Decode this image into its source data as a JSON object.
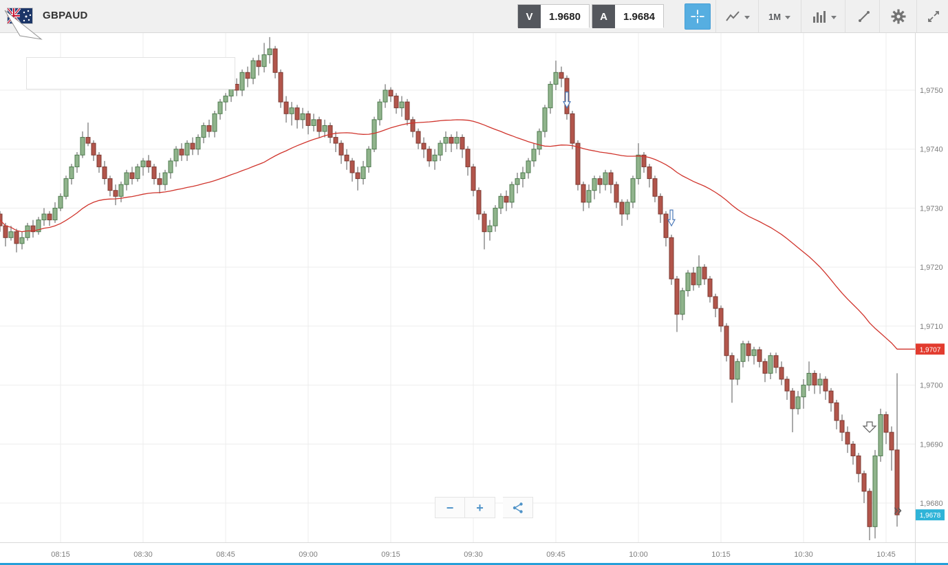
{
  "toolbar": {
    "symbol": "GBPAUD",
    "sell": {
      "label": "V",
      "price": "1.9680"
    },
    "buy": {
      "label": "A",
      "price": "1.9684"
    },
    "timeframe": "1M"
  },
  "controls": {
    "zoom_out": "−",
    "zoom_in": "+",
    "scroll_to_end": "»"
  },
  "chart_data": {
    "type": "candlestick",
    "symbol": "GBPAUD",
    "interval": "1m",
    "start_time": "08:03",
    "x_tick_labels": [
      "08:15",
      "08:30",
      "08:45",
      "09:00",
      "09:15",
      "09:30",
      "09:45",
      "10:00",
      "10:15",
      "10:30",
      "10:45"
    ],
    "y_tick_labels": [
      "1,9750",
      "1,9740",
      "1,9730",
      "1,9720",
      "1,9710",
      "1,9700",
      "1,9690",
      "1,9680"
    ],
    "y_range": [
      1.9673,
      1.976
    ],
    "grid": true,
    "ma": {
      "name": "SMA",
      "period": 50,
      "color": "#d0342c",
      "axis_label": "1,9707",
      "axis_label_color": "#e23b2e"
    },
    "current_price": {
      "value": 1.9678,
      "label": "1,9678",
      "color": "#2fb4d8"
    },
    "markers": [
      {
        "time": "09:47",
        "price": 1.9747,
        "type": "sell-arrow",
        "variant": "blue"
      },
      {
        "time": "10:06",
        "price": 1.9727,
        "type": "sell-arrow",
        "variant": "blue"
      },
      {
        "time": "10:42",
        "price": 1.9692,
        "type": "sell-arrow",
        "variant": "wide"
      }
    ],
    "colors": {
      "up_fill": "#90b48c",
      "up_stroke": "#4e7a4e",
      "down_fill": "#b2554b",
      "down_stroke": "#7c3b33",
      "wick": "#565656",
      "grid": "#ededed",
      "axis_text": "#7d7d7d",
      "axis_line": "#d9d9d9"
    },
    "candles": [
      [
        1.9731,
        1.97315,
        1.97285,
        1.9729
      ],
      [
        1.9729,
        1.97295,
        1.9726,
        1.9727
      ],
      [
        1.9727,
        1.97275,
        1.97235,
        1.9725
      ],
      [
        1.9725,
        1.9727,
        1.97245,
        1.9726
      ],
      [
        1.9726,
        1.97265,
        1.97225,
        1.9724
      ],
      [
        1.9724,
        1.9726,
        1.9723,
        1.9725
      ],
      [
        1.9725,
        1.97275,
        1.97245,
        1.9727
      ],
      [
        1.9727,
        1.9728,
        1.9725,
        1.9726
      ],
      [
        1.9726,
        1.97285,
        1.97255,
        1.9728
      ],
      [
        1.9728,
        1.973,
        1.9727,
        1.9729
      ],
      [
        1.9729,
        1.97295,
        1.9727,
        1.9728
      ],
      [
        1.9728,
        1.9731,
        1.97275,
        1.973
      ],
      [
        1.973,
        1.97325,
        1.97295,
        1.9732
      ],
      [
        1.9732,
        1.97355,
        1.97315,
        1.9735
      ],
      [
        1.9735,
        1.97375,
        1.9734,
        1.9737
      ],
      [
        1.9737,
        1.97395,
        1.9736,
        1.9739
      ],
      [
        1.9739,
        1.9743,
        1.97385,
        1.9742
      ],
      [
        1.9742,
        1.97445,
        1.97405,
        1.9741
      ],
      [
        1.9741,
        1.97415,
        1.9738,
        1.9739
      ],
      [
        1.9739,
        1.97395,
        1.9736,
        1.9737
      ],
      [
        1.9737,
        1.9738,
        1.9734,
        1.9735
      ],
      [
        1.9735,
        1.97355,
        1.9732,
        1.9733
      ],
      [
        1.9733,
        1.9734,
        1.97305,
        1.9732
      ],
      [
        1.9732,
        1.97345,
        1.9731,
        1.9734
      ],
      [
        1.9734,
        1.97365,
        1.9733,
        1.9736
      ],
      [
        1.9736,
        1.9737,
        1.9734,
        1.9735
      ],
      [
        1.9735,
        1.97375,
        1.97345,
        1.9737
      ],
      [
        1.9737,
        1.97385,
        1.97355,
        1.9738
      ],
      [
        1.9738,
        1.9739,
        1.9736,
        1.9737
      ],
      [
        1.9737,
        1.97375,
        1.9734,
        1.9735
      ],
      [
        1.9735,
        1.9736,
        1.97325,
        1.9734
      ],
      [
        1.9734,
        1.97365,
        1.9733,
        1.9736
      ],
      [
        1.9736,
        1.97385,
        1.9735,
        1.9738
      ],
      [
        1.9738,
        1.97405,
        1.9737,
        1.974
      ],
      [
        1.974,
        1.9741,
        1.9738,
        1.9739
      ],
      [
        1.9739,
        1.97415,
        1.9738,
        1.9741
      ],
      [
        1.9741,
        1.9742,
        1.9739,
        1.974
      ],
      [
        1.974,
        1.97425,
        1.9739,
        1.9742
      ],
      [
        1.9742,
        1.97445,
        1.9741,
        1.9744
      ],
      [
        1.9744,
        1.9745,
        1.9742,
        1.9743
      ],
      [
        1.9743,
        1.97465,
        1.9742,
        1.9746
      ],
      [
        1.9746,
        1.97485,
        1.9745,
        1.9748
      ],
      [
        1.9748,
        1.97495,
        1.97465,
        1.9749
      ],
      [
        1.9749,
        1.97515,
        1.9748,
        1.9751
      ],
      [
        1.9751,
        1.9752,
        1.9749,
        1.975
      ],
      [
        1.975,
        1.97535,
        1.9749,
        1.9753
      ],
      [
        1.9753,
        1.9754,
        1.97505,
        1.9752
      ],
      [
        1.9752,
        1.97555,
        1.9751,
        1.9755
      ],
      [
        1.9755,
        1.9756,
        1.97525,
        1.9754
      ],
      [
        1.9754,
        1.9758,
        1.9753,
        1.9756
      ],
      [
        1.9756,
        1.9759,
        1.97545,
        1.9757
      ],
      [
        1.9757,
        1.97575,
        1.9752,
        1.9753
      ],
      [
        1.9753,
        1.97535,
        1.9747,
        1.9748
      ],
      [
        1.9748,
        1.9749,
        1.97445,
        1.9746
      ],
      [
        1.9746,
        1.9748,
        1.9744,
        1.9747
      ],
      [
        1.9747,
        1.97475,
        1.97435,
        1.9745
      ],
      [
        1.9745,
        1.9747,
        1.97435,
        1.9746
      ],
      [
        1.9746,
        1.97465,
        1.97425,
        1.9744
      ],
      [
        1.9744,
        1.9746,
        1.9743,
        1.9745
      ],
      [
        1.9745,
        1.97455,
        1.9742,
        1.9743
      ],
      [
        1.9743,
        1.9745,
        1.9742,
        1.9744
      ],
      [
        1.9744,
        1.97445,
        1.9741,
        1.9742
      ],
      [
        1.9742,
        1.9743,
        1.97395,
        1.9741
      ],
      [
        1.9741,
        1.97415,
        1.97375,
        1.9739
      ],
      [
        1.9739,
        1.974,
        1.97365,
        1.9738
      ],
      [
        1.9738,
        1.97385,
        1.97345,
        1.9736
      ],
      [
        1.9736,
        1.9737,
        1.9733,
        1.9735
      ],
      [
        1.9735,
        1.9738,
        1.9734,
        1.9737
      ],
      [
        1.9737,
        1.97405,
        1.9736,
        1.974
      ],
      [
        1.974,
        1.97455,
        1.97395,
        1.9745
      ],
      [
        1.9745,
        1.97485,
        1.9744,
        1.9748
      ],
      [
        1.9748,
        1.9751,
        1.9747,
        1.975
      ],
      [
        1.975,
        1.97505,
        1.9748,
        1.9749
      ],
      [
        1.9749,
        1.97495,
        1.9746,
        1.9747
      ],
      [
        1.9747,
        1.9749,
        1.97455,
        1.9748
      ],
      [
        1.9748,
        1.97485,
        1.9744,
        1.9745
      ],
      [
        1.9745,
        1.97455,
        1.9742,
        1.9743
      ],
      [
        1.9743,
        1.97435,
        1.974,
        1.9741
      ],
      [
        1.9741,
        1.9742,
        1.97385,
        1.974
      ],
      [
        1.974,
        1.97405,
        1.9737,
        1.9738
      ],
      [
        1.9738,
        1.974,
        1.97365,
        1.9739
      ],
      [
        1.9739,
        1.97415,
        1.9738,
        1.9741
      ],
      [
        1.9741,
        1.9743,
        1.97395,
        1.9742
      ],
      [
        1.9742,
        1.97425,
        1.97395,
        1.9741
      ],
      [
        1.9741,
        1.9743,
        1.974,
        1.9742
      ],
      [
        1.9742,
        1.97425,
        1.97385,
        1.974
      ],
      [
        1.974,
        1.97405,
        1.97355,
        1.9737
      ],
      [
        1.9737,
        1.97375,
        1.9732,
        1.9733
      ],
      [
        1.9733,
        1.97335,
        1.9728,
        1.9729
      ],
      [
        1.9729,
        1.97295,
        1.9723,
        1.9726
      ],
      [
        1.9726,
        1.9728,
        1.97245,
        1.9727
      ],
      [
        1.9727,
        1.97305,
        1.9726,
        1.973
      ],
      [
        1.973,
        1.97325,
        1.9729,
        1.9732
      ],
      [
        1.9732,
        1.9733,
        1.97295,
        1.9731
      ],
      [
        1.9731,
        1.97345,
        1.973,
        1.9734
      ],
      [
        1.9734,
        1.9736,
        1.97325,
        1.9735
      ],
      [
        1.9735,
        1.9737,
        1.97335,
        1.9736
      ],
      [
        1.9736,
        1.97385,
        1.9735,
        1.9738
      ],
      [
        1.9738,
        1.9741,
        1.9737,
        1.974
      ],
      [
        1.974,
        1.97435,
        1.9739,
        1.9743
      ],
      [
        1.9743,
        1.97475,
        1.9742,
        1.9747
      ],
      [
        1.9747,
        1.97515,
        1.9746,
        1.9751
      ],
      [
        1.9751,
        1.9755,
        1.975,
        1.9753
      ],
      [
        1.9753,
        1.9754,
        1.97505,
        1.9752
      ],
      [
        1.9752,
        1.97525,
        1.9745,
        1.9746
      ],
      [
        1.9746,
        1.97465,
        1.974,
        1.9741
      ],
      [
        1.9741,
        1.97415,
        1.9733,
        1.9734
      ],
      [
        1.9734,
        1.97345,
        1.97295,
        1.9731
      ],
      [
        1.9731,
        1.9734,
        1.973,
        1.9733
      ],
      [
        1.9733,
        1.97355,
        1.97315,
        1.9735
      ],
      [
        1.9735,
        1.97355,
        1.97325,
        1.9734
      ],
      [
        1.9734,
        1.97365,
        1.9733,
        1.9736
      ],
      [
        1.9736,
        1.97365,
        1.97325,
        1.9734
      ],
      [
        1.9734,
        1.97345,
        1.973,
        1.9731
      ],
      [
        1.9731,
        1.97315,
        1.9727,
        1.9729
      ],
      [
        1.9729,
        1.97315,
        1.9728,
        1.9731
      ],
      [
        1.9731,
        1.97355,
        1.973,
        1.9735
      ],
      [
        1.9735,
        1.9741,
        1.9734,
        1.9739
      ],
      [
        1.9739,
        1.97395,
        1.9736,
        1.9737
      ],
      [
        1.9737,
        1.97375,
        1.97335,
        1.9735
      ],
      [
        1.9735,
        1.97355,
        1.9731,
        1.9732
      ],
      [
        1.9732,
        1.97325,
        1.97275,
        1.9729
      ],
      [
        1.9729,
        1.97295,
        1.97235,
        1.9725
      ],
      [
        1.9725,
        1.97255,
        1.9717,
        1.9718
      ],
      [
        1.9718,
        1.97185,
        1.9709,
        1.9712
      ],
      [
        1.9712,
        1.97165,
        1.9711,
        1.9716
      ],
      [
        1.9716,
        1.97195,
        1.9715,
        1.9719
      ],
      [
        1.9719,
        1.972,
        1.9716,
        1.9717
      ],
      [
        1.9717,
        1.9722,
        1.97165,
        1.972
      ],
      [
        1.972,
        1.97205,
        1.9717,
        1.9718
      ],
      [
        1.9718,
        1.97185,
        1.9714,
        1.9715
      ],
      [
        1.9715,
        1.97155,
        1.97115,
        1.9713
      ],
      [
        1.9713,
        1.97135,
        1.9709,
        1.971
      ],
      [
        1.971,
        1.97105,
        1.9704,
        1.9705
      ],
      [
        1.9705,
        1.97055,
        1.9697,
        1.9701
      ],
      [
        1.9701,
        1.97045,
        1.97,
        1.9704
      ],
      [
        1.9704,
        1.97075,
        1.9703,
        1.9707
      ],
      [
        1.9707,
        1.97075,
        1.9704,
        1.9705
      ],
      [
        1.9705,
        1.97065,
        1.97035,
        1.9706
      ],
      [
        1.9706,
        1.97065,
        1.9703,
        1.9704
      ],
      [
        1.9704,
        1.97045,
        1.97005,
        1.9702
      ],
      [
        1.9702,
        1.97055,
        1.9701,
        1.9705
      ],
      [
        1.9705,
        1.97055,
        1.9702,
        1.9703
      ],
      [
        1.9703,
        1.9704,
        1.97,
        1.9701
      ],
      [
        1.9701,
        1.97015,
        1.96975,
        1.9699
      ],
      [
        1.9699,
        1.96995,
        1.9692,
        1.9696
      ],
      [
        1.9696,
        1.9699,
        1.9695,
        1.9698
      ],
      [
        1.9698,
        1.9701,
        1.9696,
        1.97
      ],
      [
        1.97,
        1.9704,
        1.9699,
        1.9702
      ],
      [
        1.9702,
        1.97025,
        1.96985,
        1.97
      ],
      [
        1.97,
        1.9702,
        1.96985,
        1.9701
      ],
      [
        1.9701,
        1.97015,
        1.96975,
        1.9699
      ],
      [
        1.9699,
        1.96995,
        1.96955,
        1.9697
      ],
      [
        1.9697,
        1.96975,
        1.96925,
        1.9694
      ],
      [
        1.9694,
        1.9695,
        1.96905,
        1.9692
      ],
      [
        1.9692,
        1.9693,
        1.96885,
        1.969
      ],
      [
        1.969,
        1.96905,
        1.96865,
        1.9688
      ],
      [
        1.9688,
        1.96885,
        1.96835,
        1.9685
      ],
      [
        1.9685,
        1.96855,
        1.968,
        1.9682
      ],
      [
        1.9682,
        1.96825,
        1.96737,
        1.9676
      ],
      [
        1.9676,
        1.9689,
        1.9674,
        1.9688
      ],
      [
        1.9688,
        1.9696,
        1.9687,
        1.9695
      ],
      [
        1.9695,
        1.96955,
        1.969,
        1.9692
      ],
      [
        1.9692,
        1.9693,
        1.96855,
        1.9689
      ],
      [
        1.9689,
        1.9702,
        1.9676,
        1.9678
      ]
    ]
  }
}
